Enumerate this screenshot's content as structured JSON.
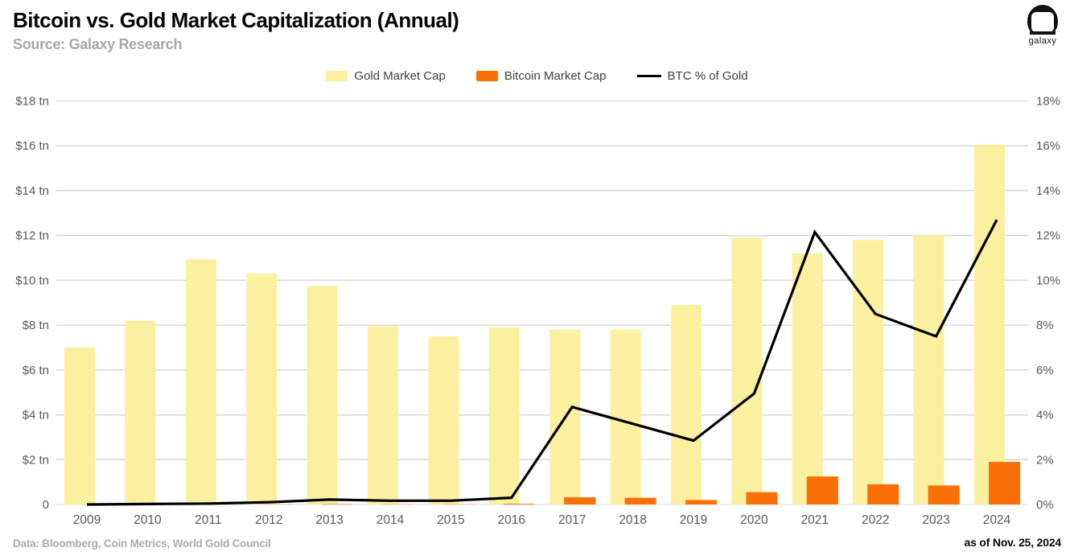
{
  "header": {
    "title": "Bitcoin vs. Gold Market Capitalization (Annual)",
    "subtitle": "Source: Galaxy Research",
    "logo_text": "galaxy"
  },
  "legend": [
    {
      "label": "Gold Market Cap",
      "color": "#FBF0A0",
      "kind": "swatch"
    },
    {
      "label": "Bitcoin Market Cap",
      "color": "#FA7005",
      "kind": "swatch"
    },
    {
      "label": "BTC % of Gold",
      "color": "#000000",
      "kind": "line"
    }
  ],
  "footer": {
    "left": "Data: Bloomberg, Coin Metrics, World Gold Council",
    "right": "as of Nov. 25, 2024"
  },
  "colors": {
    "gold_bar": "#FBF0A0",
    "btc_bar": "#FA7005",
    "pct_line": "#000000",
    "gridline": "#d9d9d9",
    "tick_label": "#595959"
  },
  "chart_data": {
    "type": "bar",
    "title": "Bitcoin vs. Gold Market Capitalization (Annual)",
    "categories": [
      "2009",
      "2010",
      "2011",
      "2012",
      "2013",
      "2014",
      "2015",
      "2016",
      "2017",
      "2018",
      "2019",
      "2020",
      "2021",
      "2022",
      "2023",
      "2024"
    ],
    "series": [
      {
        "name": "Gold Market Cap",
        "type": "bar",
        "axis": "left",
        "unit": "$ tn",
        "color": "#FBF0A0",
        "values": [
          7.0,
          8.2,
          10.95,
          10.3,
          9.75,
          7.95,
          7.5,
          7.9,
          7.8,
          7.8,
          8.9,
          11.9,
          11.2,
          11.8,
          12.0,
          16.05
        ]
      },
      {
        "name": "Bitcoin Market Cap",
        "type": "bar",
        "axis": "left",
        "unit": "$ tn",
        "color": "#FA7005",
        "values": [
          0,
          0,
          0.005,
          0.01,
          0.02,
          0.01,
          0.01,
          0.03,
          0.32,
          0.3,
          0.2,
          0.55,
          1.25,
          0.9,
          0.85,
          1.9
        ]
      },
      {
        "name": "BTC % of Gold",
        "type": "line",
        "axis": "right",
        "unit": "%",
        "color": "#000000",
        "values": [
          0,
          0.02,
          0.04,
          0.1,
          0.22,
          0.17,
          0.17,
          0.3,
          4.35,
          3.6,
          2.85,
          4.95,
          12.15,
          8.5,
          7.5,
          12.7
        ]
      }
    ],
    "y_left": {
      "label": "",
      "min": 0,
      "max": 18,
      "ticks_top_to_bottom": [
        "$18 tn",
        "$16 tn",
        "$14 tn",
        "$12 tn",
        "$10 tn",
        "$8 tn",
        "$6 tn",
        "$4 tn",
        "$2 tn",
        "0"
      ]
    },
    "y_right": {
      "label": "",
      "min": 0,
      "max": 18,
      "ticks_top_to_bottom": [
        "18%",
        "16%",
        "14%",
        "12%",
        "10%",
        "8%",
        "6%",
        "4%",
        "2%",
        "0%"
      ]
    },
    "grid": true,
    "legend_position": "top-center"
  }
}
